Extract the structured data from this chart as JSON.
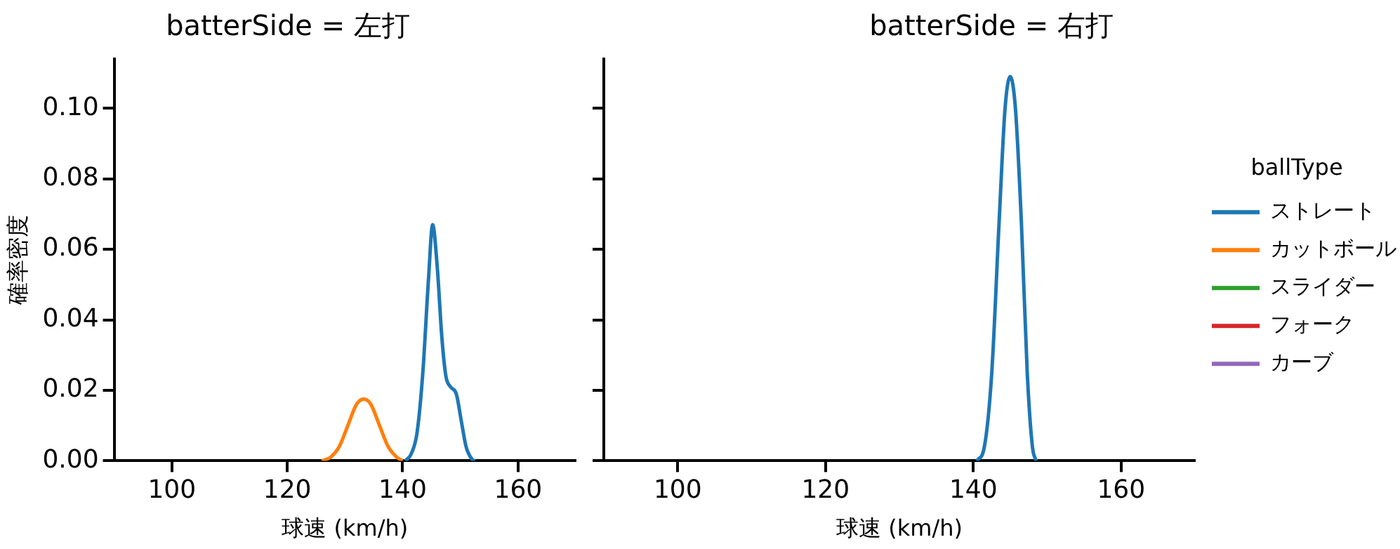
{
  "chart_data": [
    {
      "type": "line",
      "title": "batterSide = 左打",
      "xlabel": "球速 (km/h)",
      "ylabel": "確率密度",
      "xlim": [
        90,
        170
      ],
      "xticks": [
        100,
        120,
        140,
        160
      ],
      "ylim": [
        0,
        0.114
      ],
      "yticks": [
        {
          "value": 0,
          "label": "0.00"
        },
        {
          "value": 0.02,
          "label": "0.02"
        },
        {
          "value": 0.04,
          "label": "0.04"
        },
        {
          "value": 0.06,
          "label": "0.06"
        },
        {
          "value": 0.08,
          "label": "0.08"
        },
        {
          "value": 0.1,
          "label": "0.10"
        }
      ],
      "legend": false,
      "series": [
        {
          "color": "#1f77b4",
          "x": [
            140.5,
            141.5,
            142.5,
            143.5,
            144.5,
            145.2,
            146,
            146.8,
            147.5,
            148.3,
            149.3,
            150.2,
            151,
            152,
            152.5
          ],
          "values": [
            0,
            0.002,
            0.008,
            0.025,
            0.052,
            0.067,
            0.055,
            0.035,
            0.024,
            0.021,
            0.019,
            0.011,
            0.004,
            0.0005,
            0
          ]
        },
        {
          "color": "#ff7f0e",
          "x": [
            126,
            127.5,
            129,
            130.5,
            132,
            133.3,
            134.5,
            136,
            137.5,
            139,
            140
          ],
          "values": [
            0,
            0.001,
            0.004,
            0.01,
            0.016,
            0.0175,
            0.016,
            0.01,
            0.004,
            0.001,
            0
          ]
        }
      ]
    },
    {
      "type": "line",
      "title": "batterSide = 右打",
      "xlabel": "球速 (km/h)",
      "xlim": [
        90,
        170
      ],
      "xticks": [
        100,
        120,
        140,
        160
      ],
      "ylim": [
        0,
        0.114
      ],
      "yticks": [
        {
          "value": 0,
          "label": null
        },
        {
          "value": 0.02,
          "label": null
        },
        {
          "value": 0.04,
          "label": null
        },
        {
          "value": 0.06,
          "label": null
        },
        {
          "value": 0.08,
          "label": null
        },
        {
          "value": 0.1,
          "label": null
        }
      ],
      "tick_labels": "x",
      "legend": "right",
      "legend_title": "ballType",
      "series": [
        {
          "name": "ストレート",
          "color": "#1f77b4",
          "x": [
            140.5,
            141.5,
            142.5,
            143.5,
            144.3,
            145,
            145.7,
            146.5,
            147.3,
            148,
            148.5
          ],
          "values": [
            0,
            0.004,
            0.025,
            0.068,
            0.1,
            0.109,
            0.1,
            0.068,
            0.025,
            0.004,
            0
          ]
        },
        {
          "name": "カットボール",
          "color": "#ff7f0e"
        },
        {
          "name": "スライダー",
          "color": "#2ca02c"
        },
        {
          "name": "フォーク",
          "color": "#d62728"
        },
        {
          "name": "カーブ",
          "color": "#9467bd"
        }
      ]
    }
  ]
}
